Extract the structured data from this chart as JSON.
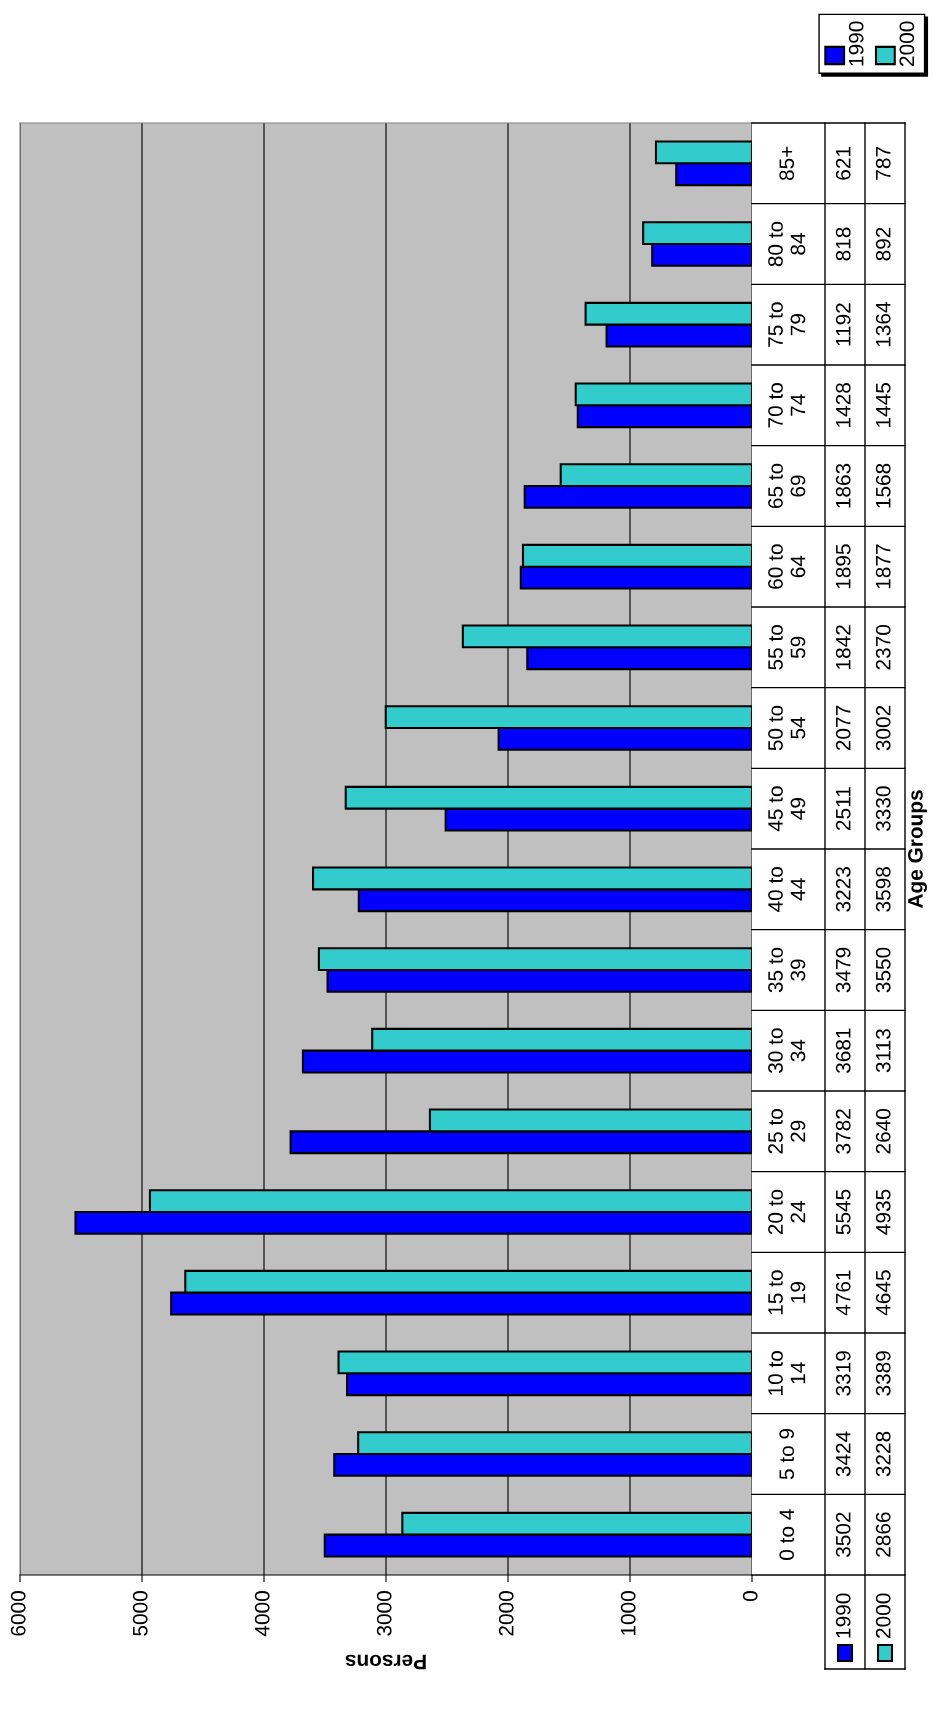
{
  "chart_data": {
    "type": "bar",
    "orientation": "horizontal",
    "xlabel": "Persons",
    "ylabel": "Age Groups",
    "categories": [
      "85+",
      "80 to\n84",
      "75 to\n79",
      "70 to\n74",
      "65 to\n69",
      "60 to\n64",
      "55 to\n59",
      "50 to\n54",
      "45 to\n49",
      "40 to\n44",
      "35 to\n39",
      "30 to\n34",
      "25 to\n29",
      "20 to\n24",
      "15 to\n19",
      "10 to\n14",
      "5 to 9",
      "0 to 4"
    ],
    "series": [
      {
        "name": "1990",
        "color": "#0000ff",
        "values": [
          621,
          818,
          1192,
          1428,
          1863,
          1895,
          1842,
          2077,
          2511,
          3223,
          3479,
          3681,
          3782,
          5545,
          4761,
          3319,
          3424,
          3502
        ]
      },
      {
        "name": "2000",
        "color": "#33cccc",
        "values": [
          787,
          892,
          1364,
          1445,
          1568,
          1877,
          2370,
          3002,
          3330,
          3598,
          3550,
          3113,
          2640,
          4935,
          4645,
          3389,
          3228,
          2866
        ]
      }
    ],
    "xlim": [
      6000,
      0
    ],
    "xticks": [
      0,
      1000,
      2000,
      3000,
      4000,
      5000,
      6000
    ],
    "grid": "x",
    "legend": "top right",
    "data_labels": true
  }
}
